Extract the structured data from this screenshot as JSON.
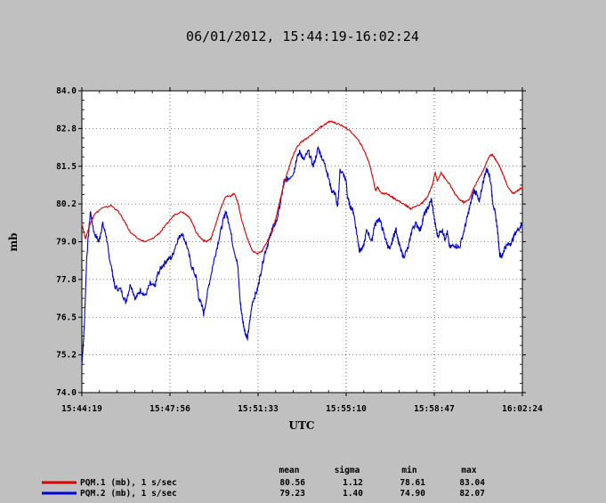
{
  "chart_data": {
    "type": "line",
    "title": "06/01/2012, 15:44:19-16:02:24",
    "xlabel": "UTC",
    "ylabel": "mb",
    "ylim": [
      74.0,
      84.0
    ],
    "yticks": [
      "74.0",
      "75.2",
      "76.5",
      "77.8",
      "79.0",
      "80.2",
      "81.5",
      "82.8",
      "84.0"
    ],
    "xticks": [
      "15:44:19",
      "15:47:56",
      "15:51:33",
      "15:55:10",
      "15:58:47",
      "16:02:24"
    ],
    "xlim_minutes": [
      0,
      18.083
    ],
    "grid": true,
    "stats_headers": [
      "mean",
      "sigma",
      "min",
      "max"
    ],
    "series": [
      {
        "name": "PQM.2 (mb), 1 s/sec",
        "color": "#0000cc",
        "stats": [
          "79.23",
          "1.40",
          "74.90",
          "82.07"
        ],
        "points": [
          [
            0,
            74.9
          ],
          [
            0.1,
            76.2
          ],
          [
            0.2,
            78.5
          ],
          [
            0.35,
            80.0
          ],
          [
            0.5,
            79.3
          ],
          [
            0.7,
            79.0
          ],
          [
            0.85,
            79.6
          ],
          [
            1.0,
            79.2
          ],
          [
            1.1,
            78.6
          ],
          [
            1.25,
            78.0
          ],
          [
            1.35,
            77.5
          ],
          [
            1.6,
            77.4
          ],
          [
            1.8,
            77.0
          ],
          [
            2.0,
            77.6
          ],
          [
            2.2,
            77.1
          ],
          [
            2.4,
            77.4
          ],
          [
            2.6,
            77.2
          ],
          [
            2.8,
            77.6
          ],
          [
            3.0,
            77.5
          ],
          [
            3.1,
            77.9
          ],
          [
            3.3,
            78.2
          ],
          [
            3.5,
            78.4
          ],
          [
            3.7,
            78.5
          ],
          [
            3.9,
            79.0
          ],
          [
            4.1,
            79.3
          ],
          [
            4.3,
            78.9
          ],
          [
            4.5,
            78.2
          ],
          [
            4.7,
            77.8
          ],
          [
            4.8,
            77.1
          ],
          [
            4.9,
            77.0
          ],
          [
            5.0,
            76.6
          ],
          [
            5.2,
            77.5
          ],
          [
            5.4,
            78.3
          ],
          [
            5.6,
            79.0
          ],
          [
            5.8,
            79.7
          ],
          [
            5.9,
            80.0
          ],
          [
            6.05,
            79.6
          ],
          [
            6.2,
            78.9
          ],
          [
            6.4,
            78.2
          ],
          [
            6.5,
            77.0
          ],
          [
            6.6,
            76.4
          ],
          [
            6.7,
            76.0
          ],
          [
            6.8,
            75.8
          ],
          [
            6.9,
            76.4
          ],
          [
            7.0,
            77.0
          ],
          [
            7.2,
            77.4
          ],
          [
            7.3,
            77.8
          ],
          [
            7.5,
            78.6
          ],
          [
            7.7,
            79.1
          ],
          [
            7.8,
            79.4
          ],
          [
            8.0,
            79.7
          ],
          [
            8.2,
            80.5
          ],
          [
            8.3,
            81.0
          ],
          [
            8.5,
            81.1
          ],
          [
            8.7,
            81.3
          ],
          [
            8.8,
            81.7
          ],
          [
            8.95,
            82.0
          ],
          [
            9.1,
            81.7
          ],
          [
            9.3,
            82.0
          ],
          [
            9.5,
            81.5
          ],
          [
            9.7,
            82.1
          ],
          [
            9.8,
            81.9
          ],
          [
            10.0,
            81.5
          ],
          [
            10.1,
            81.2
          ],
          [
            10.25,
            80.7
          ],
          [
            10.4,
            80.6
          ],
          [
            10.5,
            80.1
          ],
          [
            10.6,
            81.4
          ],
          [
            10.75,
            81.2
          ],
          [
            10.85,
            81.0
          ],
          [
            10.9,
            80.5
          ],
          [
            11.0,
            80.2
          ],
          [
            11.15,
            80.0
          ],
          [
            11.3,
            79.2
          ],
          [
            11.4,
            78.7
          ],
          [
            11.55,
            78.8
          ],
          [
            11.7,
            79.4
          ],
          [
            11.9,
            79.0
          ],
          [
            12.0,
            79.5
          ],
          [
            12.2,
            79.8
          ],
          [
            12.35,
            79.4
          ],
          [
            12.5,
            79.0
          ],
          [
            12.65,
            78.7
          ],
          [
            12.8,
            79.2
          ],
          [
            12.9,
            79.4
          ],
          [
            13.0,
            79.0
          ],
          [
            13.1,
            78.7
          ],
          [
            13.2,
            78.5
          ],
          [
            13.4,
            78.8
          ],
          [
            13.55,
            79.4
          ],
          [
            13.7,
            79.6
          ],
          [
            13.9,
            79.4
          ],
          [
            14.05,
            79.9
          ],
          [
            14.2,
            80.1
          ],
          [
            14.35,
            80.4
          ],
          [
            14.5,
            79.6
          ],
          [
            14.6,
            79.2
          ],
          [
            14.8,
            79.4
          ],
          [
            14.9,
            79.1
          ],
          [
            15.0,
            79.3
          ],
          [
            15.1,
            78.8
          ],
          [
            15.3,
            78.9
          ],
          [
            15.5,
            78.8
          ],
          [
            15.7,
            79.4
          ],
          [
            15.85,
            79.9
          ],
          [
            16.0,
            80.4
          ],
          [
            16.1,
            80.7
          ],
          [
            16.2,
            80.6
          ],
          [
            16.3,
            80.3
          ],
          [
            16.45,
            80.9
          ],
          [
            16.6,
            81.4
          ],
          [
            16.7,
            81.3
          ],
          [
            16.8,
            80.9
          ],
          [
            16.85,
            80.4
          ],
          [
            16.95,
            80.0
          ],
          [
            17.05,
            79.5
          ],
          [
            17.15,
            78.6
          ],
          [
            17.25,
            78.5
          ],
          [
            17.35,
            78.8
          ],
          [
            17.5,
            78.9
          ],
          [
            17.65,
            79.0
          ],
          [
            17.8,
            79.3
          ],
          [
            18.0,
            79.5
          ],
          [
            18.083,
            79.6
          ]
        ]
      },
      {
        "name": "PQM.1 (mb), 1 s/sec",
        "color": "#dd0000",
        "stats": [
          "80.56",
          "1.12",
          "78.61",
          "83.04"
        ],
        "points": [
          [
            0,
            79.6
          ],
          [
            0.15,
            79.1
          ],
          [
            0.3,
            79.5
          ],
          [
            0.5,
            79.9
          ],
          [
            0.8,
            80.1
          ],
          [
            1.2,
            80.2
          ],
          [
            1.5,
            80.0
          ],
          [
            1.8,
            79.6
          ],
          [
            2.0,
            79.3
          ],
          [
            2.3,
            79.1
          ],
          [
            2.6,
            79.0
          ],
          [
            2.9,
            79.1
          ],
          [
            3.2,
            79.3
          ],
          [
            3.5,
            79.6
          ],
          [
            3.8,
            79.9
          ],
          [
            4.1,
            80.0
          ],
          [
            4.3,
            79.9
          ],
          [
            4.5,
            79.7
          ],
          [
            4.7,
            79.3
          ],
          [
            4.9,
            79.1
          ],
          [
            5.1,
            79.0
          ],
          [
            5.3,
            79.1
          ],
          [
            5.5,
            79.6
          ],
          [
            5.7,
            80.1
          ],
          [
            5.9,
            80.5
          ],
          [
            6.1,
            80.5
          ],
          [
            6.25,
            80.6
          ],
          [
            6.4,
            80.3
          ],
          [
            6.6,
            79.6
          ],
          [
            6.8,
            79.1
          ],
          [
            7.0,
            78.7
          ],
          [
            7.2,
            78.6
          ],
          [
            7.4,
            78.7
          ],
          [
            7.6,
            79.0
          ],
          [
            7.8,
            79.3
          ],
          [
            8.0,
            79.9
          ],
          [
            8.2,
            80.6
          ],
          [
            8.4,
            81.2
          ],
          [
            8.6,
            81.7
          ],
          [
            8.8,
            82.1
          ],
          [
            9.0,
            82.3
          ],
          [
            9.2,
            82.4
          ],
          [
            9.5,
            82.6
          ],
          [
            9.8,
            82.8
          ],
          [
            10.0,
            82.9
          ],
          [
            10.2,
            83.0
          ],
          [
            10.5,
            82.9
          ],
          [
            10.8,
            82.8
          ],
          [
            11.1,
            82.6
          ],
          [
            11.4,
            82.3
          ],
          [
            11.6,
            82.0
          ],
          [
            11.8,
            81.6
          ],
          [
            11.95,
            81.1
          ],
          [
            12.05,
            80.7
          ],
          [
            12.15,
            80.8
          ],
          [
            12.3,
            80.6
          ],
          [
            12.5,
            80.6
          ],
          [
            12.7,
            80.5
          ],
          [
            12.9,
            80.4
          ],
          [
            13.1,
            80.3
          ],
          [
            13.3,
            80.2
          ],
          [
            13.5,
            80.1
          ],
          [
            13.8,
            80.2
          ],
          [
            14.0,
            80.3
          ],
          [
            14.2,
            80.5
          ],
          [
            14.4,
            80.9
          ],
          [
            14.5,
            81.3
          ],
          [
            14.6,
            81.0
          ],
          [
            14.75,
            81.3
          ],
          [
            14.9,
            81.1
          ],
          [
            15.1,
            80.9
          ],
          [
            15.3,
            80.6
          ],
          [
            15.5,
            80.4
          ],
          [
            15.7,
            80.3
          ],
          [
            15.9,
            80.4
          ],
          [
            16.1,
            80.8
          ],
          [
            16.3,
            81.1
          ],
          [
            16.5,
            81.4
          ],
          [
            16.7,
            81.8
          ],
          [
            16.85,
            81.9
          ],
          [
            17.0,
            81.7
          ],
          [
            17.15,
            81.5
          ],
          [
            17.3,
            81.2
          ],
          [
            17.5,
            80.8
          ],
          [
            17.7,
            80.6
          ],
          [
            17.9,
            80.7
          ],
          [
            18.083,
            80.8
          ]
        ]
      }
    ]
  }
}
